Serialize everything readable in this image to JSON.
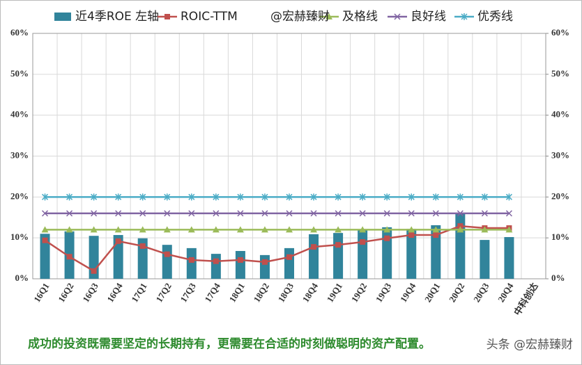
{
  "chart_data": {
    "type": "combo",
    "categories": [
      "16Q1",
      "16Q2",
      "16Q3",
      "16Q4",
      "17Q1",
      "17Q2",
      "17Q3",
      "17Q4",
      "18Q1",
      "18Q2",
      "18Q3",
      "18Q4",
      "19Q1",
      "19Q2",
      "19Q3",
      "19Q4",
      "20Q1",
      "20Q2",
      "20Q3",
      "20Q4",
      "中科创达"
    ],
    "series": [
      {
        "name": "近4季ROE 左轴",
        "type": "bar",
        "color": "#31849b",
        "values": [
          11,
          11.6,
          10.5,
          10.7,
          9.9,
          8.3,
          7.5,
          6.1,
          6.8,
          5.8,
          7.5,
          10.9,
          11.2,
          11.9,
          12.6,
          12.2,
          13.1,
          16.0,
          9.5,
          10.2,
          null
        ]
      },
      {
        "name": "ROIC-TTM",
        "type": "line",
        "marker": "square",
        "color": "#c0504d",
        "values": [
          9.4,
          5.4,
          1.9,
          9.2,
          8.0,
          6.0,
          4.6,
          4.3,
          4.6,
          4.1,
          5.3,
          7.8,
          8.3,
          9.0,
          9.9,
          10.7,
          10.7,
          12.9,
          12.4,
          12.4,
          null
        ]
      },
      {
        "name": "及格线",
        "type": "line",
        "marker": "triangle",
        "color": "#9bbb59",
        "values": [
          12,
          12,
          12,
          12,
          12,
          12,
          12,
          12,
          12,
          12,
          12,
          12,
          12,
          12,
          12,
          12,
          12,
          12,
          12,
          12,
          null
        ]
      },
      {
        "name": "良好线",
        "type": "line",
        "marker": "x",
        "color": "#8064a2",
        "values": [
          16,
          16,
          16,
          16,
          16,
          16,
          16,
          16,
          16,
          16,
          16,
          16,
          16,
          16,
          16,
          16,
          16,
          16,
          16,
          16,
          null
        ]
      },
      {
        "name": "优秀线",
        "type": "line",
        "marker": "star",
        "color": "#4bacc6",
        "values": [
          20,
          20,
          20,
          20,
          20,
          20,
          20,
          20,
          20,
          20,
          20,
          20,
          20,
          20,
          20,
          20,
          20,
          20,
          20,
          20,
          null
        ]
      }
    ],
    "legend_note": "@宏赫臻财",
    "ylim": [
      0,
      60
    ],
    "yticks": [
      {
        "value": 0,
        "label": "0%"
      },
      {
        "value": 10,
        "label": "10%"
      },
      {
        "value": 20,
        "label": "20%"
      },
      {
        "value": 30,
        "label": "30%"
      },
      {
        "value": 40,
        "label": "40%"
      },
      {
        "value": 50,
        "label": "50%"
      },
      {
        "value": 60,
        "label": "60%"
      }
    ],
    "y2lim": [
      0,
      60
    ],
    "y2ticks": [
      {
        "value": 0,
        "label": "0%"
      },
      {
        "value": 10,
        "label": "10%"
      },
      {
        "value": 20,
        "label": "20%"
      },
      {
        "value": 30,
        "label": "30%"
      },
      {
        "value": 40,
        "label": "40%"
      },
      {
        "value": 50,
        "label": "50%"
      },
      {
        "value": 60,
        "label": "60%"
      }
    ],
    "grid": true,
    "footnote": "成功的投资既需要坚定的长期持有，更需要在合适的时刻做聪明的资产配置。",
    "watermark": "头条 @宏赫臻财"
  }
}
